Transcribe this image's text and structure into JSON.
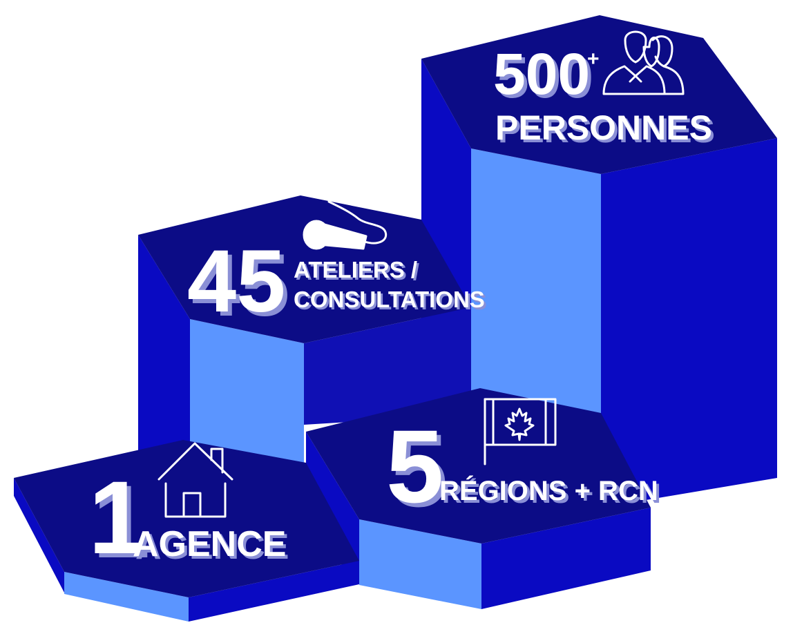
{
  "colors": {
    "top_face": "#0c0c86",
    "side_light": "#5b95ff",
    "side_dark": "#0a0ac2",
    "side_mid": "#1010b4",
    "text": "#ffffff",
    "text_shadow": "#8a8fd6"
  },
  "stats": [
    {
      "number": "1",
      "label": "AGENCE",
      "icon": "house-icon"
    },
    {
      "number": "45",
      "label_line1": "ATELIERS /",
      "label_line2": "CONSULTATIONS",
      "icon": "microphone-icon"
    },
    {
      "number": "5",
      "label": "RÉGIONS + RCN",
      "icon": "canada-flag-icon"
    },
    {
      "number": "500",
      "suffix": "+",
      "label": "PERSONNES",
      "icon": "people-icon"
    }
  ]
}
